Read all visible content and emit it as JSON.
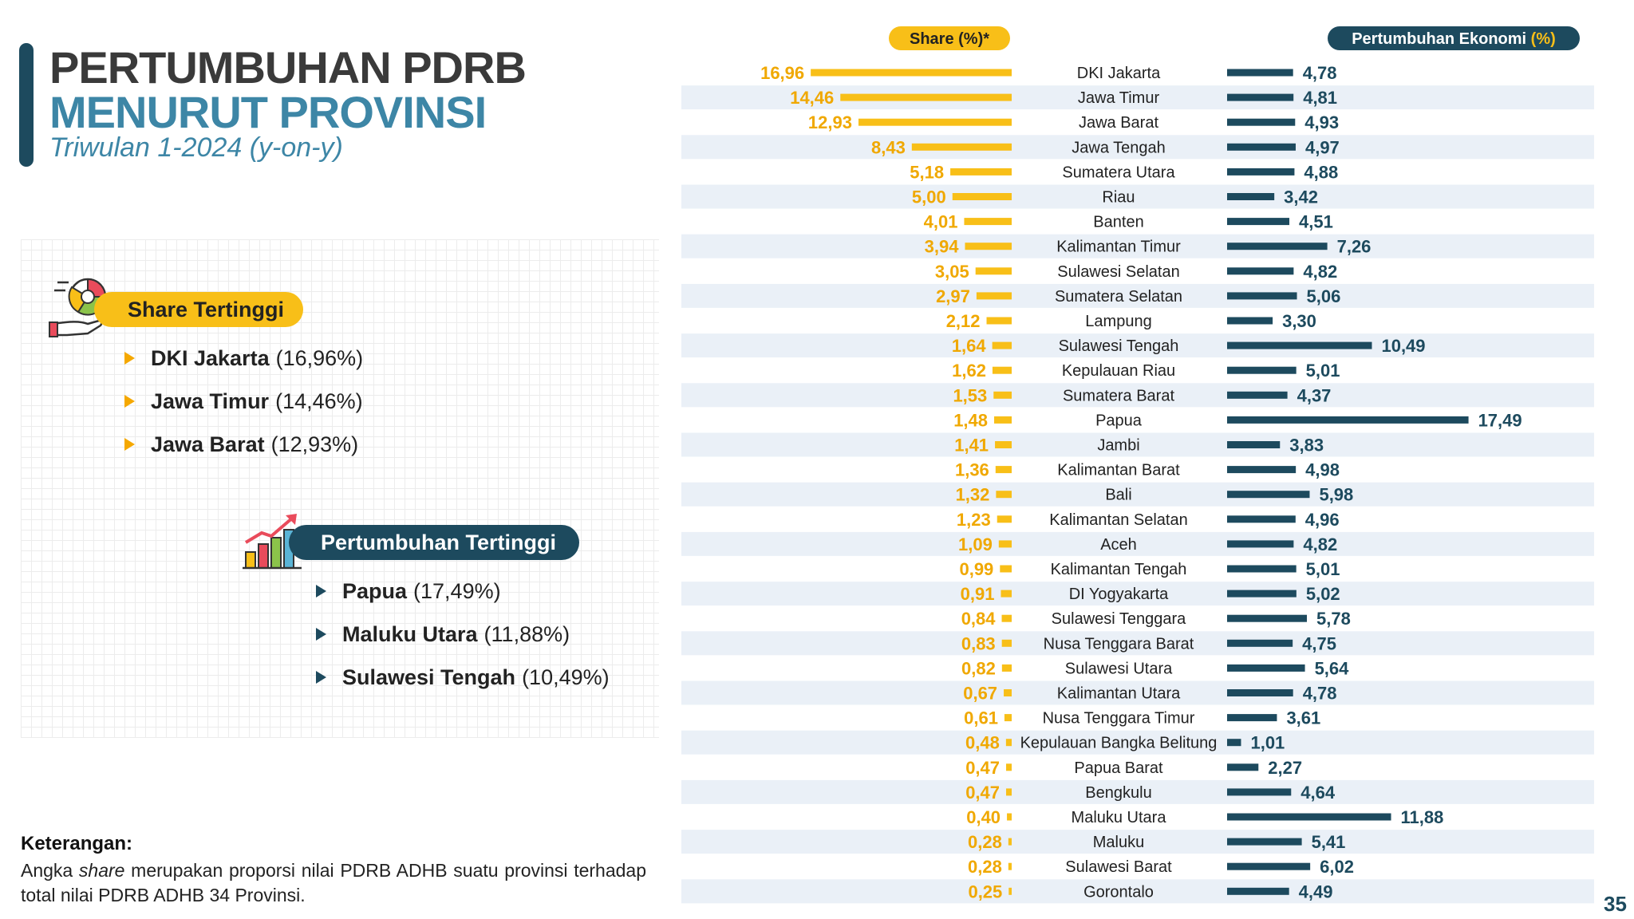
{
  "header": {
    "title_line1": "PERTUMBUHAN PDRB",
    "title_line2": "MENURUT PROVINSI",
    "subtitle": "Triwulan 1-2024 (y-on-y)"
  },
  "highlights": {
    "share": {
      "label": "Share Tertinggi",
      "items": [
        {
          "name": "DKI Jakarta",
          "value": "(16,96%)"
        },
        {
          "name": "Jawa Timur",
          "value": "(14,46%)"
        },
        {
          "name": "Jawa Barat",
          "value": "(12,93%)"
        }
      ]
    },
    "growth": {
      "label": "Pertumbuhan Tertinggi",
      "items": [
        {
          "name": "Papua",
          "value": "(17,49%)"
        },
        {
          "name": "Maluku Utara",
          "value": "(11,88%)"
        },
        {
          "name": "Sulawesi Tengah",
          "value": "(10,49%)"
        }
      ]
    }
  },
  "note": {
    "title": "Keterangan:",
    "text_before": "Angka ",
    "text_italic": "share",
    "text_after": " merupakan proporsi nilai PDRB ADHB suatu provinsi terhadap total nilai PDRB ADHB 34 Provinsi."
  },
  "page_number": "35",
  "colors": {
    "share_bar": "#f8bf18",
    "share_label": "#f0a800",
    "growth_bar": "#1d4a5e",
    "stripe": "#eaf0f7",
    "title_blue": "#3d86a6"
  },
  "chart_data": {
    "type": "bar",
    "share_header": "Share (%)*",
    "growth_header_main": "Pertumbuhan Ekonomi ",
    "growth_header_unit": "(%)",
    "provinces": [
      {
        "name": "DKI Jakarta",
        "share": 16.96,
        "share_label": "16,96",
        "growth": 4.78,
        "growth_label": "4,78"
      },
      {
        "name": "Jawa Timur",
        "share": 14.46,
        "share_label": "14,46",
        "growth": 4.81,
        "growth_label": "4,81"
      },
      {
        "name": "Jawa Barat",
        "share": 12.93,
        "share_label": "12,93",
        "growth": 4.93,
        "growth_label": "4,93"
      },
      {
        "name": "Jawa Tengah",
        "share": 8.43,
        "share_label": "8,43",
        "growth": 4.97,
        "growth_label": "4,97"
      },
      {
        "name": "Sumatera Utara",
        "share": 5.18,
        "share_label": "5,18",
        "growth": 4.88,
        "growth_label": "4,88"
      },
      {
        "name": "Riau",
        "share": 5.0,
        "share_label": "5,00",
        "growth": 3.42,
        "growth_label": "3,42"
      },
      {
        "name": "Banten",
        "share": 4.01,
        "share_label": "4,01",
        "growth": 4.51,
        "growth_label": "4,51"
      },
      {
        "name": "Kalimantan Timur",
        "share": 3.94,
        "share_label": "3,94",
        "growth": 7.26,
        "growth_label": "7,26"
      },
      {
        "name": "Sulawesi Selatan",
        "share": 3.05,
        "share_label": "3,05",
        "growth": 4.82,
        "growth_label": "4,82"
      },
      {
        "name": "Sumatera Selatan",
        "share": 2.97,
        "share_label": "2,97",
        "growth": 5.06,
        "growth_label": "5,06"
      },
      {
        "name": "Lampung",
        "share": 2.12,
        "share_label": "2,12",
        "growth": 3.3,
        "growth_label": "3,30"
      },
      {
        "name": "Sulawesi Tengah",
        "share": 1.64,
        "share_label": "1,64",
        "growth": 10.49,
        "growth_label": "10,49"
      },
      {
        "name": "Kepulauan Riau",
        "share": 1.62,
        "share_label": "1,62",
        "growth": 5.01,
        "growth_label": "5,01"
      },
      {
        "name": "Sumatera Barat",
        "share": 1.53,
        "share_label": "1,53",
        "growth": 4.37,
        "growth_label": "4,37"
      },
      {
        "name": "Papua",
        "share": 1.48,
        "share_label": "1,48",
        "growth": 17.49,
        "growth_label": "17,49"
      },
      {
        "name": "Jambi",
        "share": 1.41,
        "share_label": "1,41",
        "growth": 3.83,
        "growth_label": "3,83"
      },
      {
        "name": "Kalimantan Barat",
        "share": 1.36,
        "share_label": "1,36",
        "growth": 4.98,
        "growth_label": "4,98"
      },
      {
        "name": "Bali",
        "share": 1.32,
        "share_label": "1,32",
        "growth": 5.98,
        "growth_label": "5,98"
      },
      {
        "name": "Kalimantan Selatan",
        "share": 1.23,
        "share_label": "1,23",
        "growth": 4.96,
        "growth_label": "4,96"
      },
      {
        "name": "Aceh",
        "share": 1.09,
        "share_label": "1,09",
        "growth": 4.82,
        "growth_label": "4,82"
      },
      {
        "name": "Kalimantan Tengah",
        "share": 0.99,
        "share_label": "0,99",
        "growth": 5.01,
        "growth_label": "5,01"
      },
      {
        "name": "DI Yogyakarta",
        "share": 0.91,
        "share_label": "0,91",
        "growth": 5.02,
        "growth_label": "5,02"
      },
      {
        "name": "Sulawesi Tenggara",
        "share": 0.84,
        "share_label": "0,84",
        "growth": 5.78,
        "growth_label": "5,78"
      },
      {
        "name": "Nusa Tenggara Barat",
        "share": 0.83,
        "share_label": "0,83",
        "growth": 4.75,
        "growth_label": "4,75"
      },
      {
        "name": "Sulawesi Utara",
        "share": 0.82,
        "share_label": "0,82",
        "growth": 5.64,
        "growth_label": "5,64"
      },
      {
        "name": "Kalimantan Utara",
        "share": 0.67,
        "share_label": "0,67",
        "growth": 4.78,
        "growth_label": "4,78"
      },
      {
        "name": "Nusa Tenggara Timur",
        "share": 0.61,
        "share_label": "0,61",
        "growth": 3.61,
        "growth_label": "3,61"
      },
      {
        "name": "Kepulauan Bangka Belitung",
        "share": 0.48,
        "share_label": "0,48",
        "growth": 1.01,
        "growth_label": "1,01"
      },
      {
        "name": "Papua Barat",
        "share": 0.47,
        "share_label": "0,47",
        "growth": 2.27,
        "growth_label": "2,27"
      },
      {
        "name": "Bengkulu",
        "share": 0.47,
        "share_label": "0,47",
        "growth": 4.64,
        "growth_label": "4,64"
      },
      {
        "name": "Maluku Utara",
        "share": 0.4,
        "share_label": "0,40",
        "growth": 11.88,
        "growth_label": "11,88"
      },
      {
        "name": "Maluku",
        "share": 0.28,
        "share_label": "0,28",
        "growth": 5.41,
        "growth_label": "5,41"
      },
      {
        "name": "Sulawesi Barat",
        "share": 0.28,
        "share_label": "0,28",
        "growth": 6.02,
        "growth_label": "6,02"
      },
      {
        "name": "Gorontalo",
        "share": 0.25,
        "share_label": "0,25",
        "growth": 4.49,
        "growth_label": "4,49"
      }
    ]
  }
}
